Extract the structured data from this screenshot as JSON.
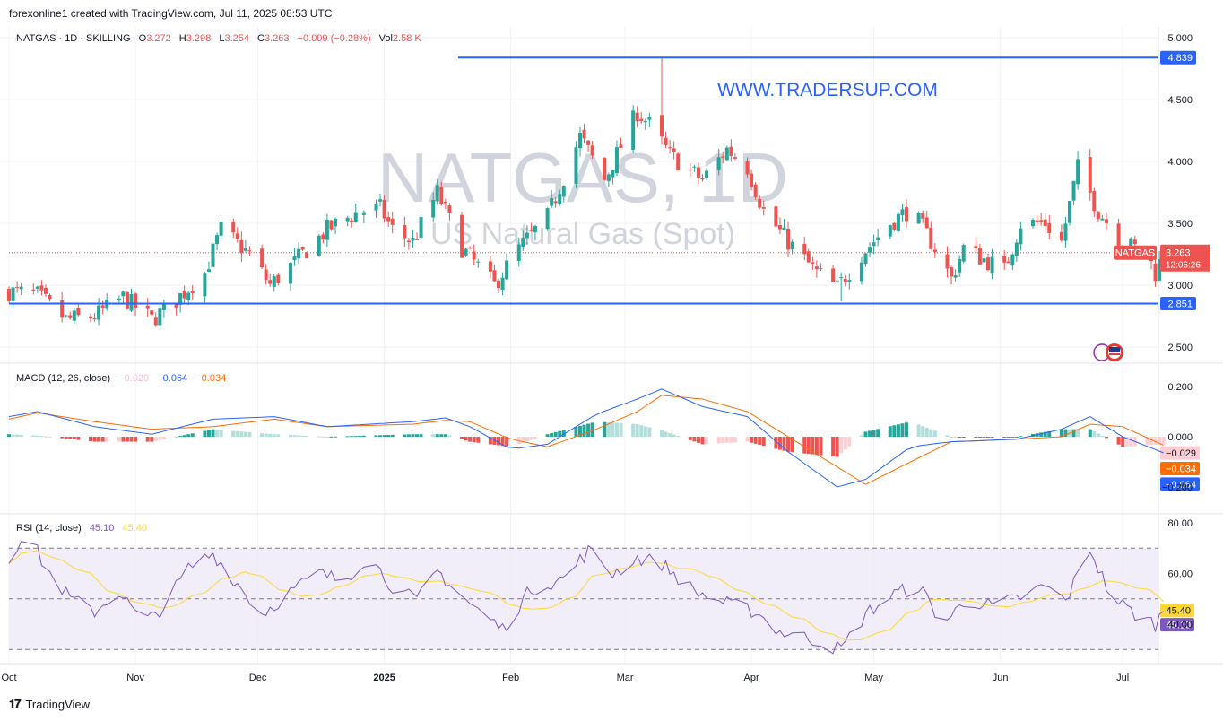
{
  "header": {
    "attribution": "forexonline1 created with TradingView.com, Jul 11, 2025 08:53 UTC"
  },
  "legend": {
    "symbol": "NATGAS · 1D · SKILLING",
    "o_label": "O",
    "o_value": "3.272",
    "h_label": "H",
    "h_value": "3.298",
    "l_label": "L",
    "l_value": "3.254",
    "c_label": "C",
    "c_value": "3.263",
    "change": "−0.009 (−0.28%)",
    "vol_label": "Vol",
    "vol_value": "2.58 K"
  },
  "watermark": {
    "title": "NATGAS, 1D",
    "subtitle": "US Natural Gas (Spot)"
  },
  "site_text": "WWW.TRADERSUP.COM",
  "price_axis": {
    "ticks": [
      "5.000",
      "4.500",
      "4.000",
      "3.500",
      "3.000",
      "2.500"
    ]
  },
  "levels": {
    "resistance": "4.839",
    "support": "2.851"
  },
  "last_price": {
    "symbol_tag": "NATGAS",
    "price": "3.263",
    "countdown": "12:06:26"
  },
  "macd": {
    "label": "MACD (12, 26, close)",
    "hist_value": "−0.029",
    "macd_value": "−0.064",
    "signal_value": "−0.034",
    "ticks": [
      "0.200",
      "0.000",
      "−0.200"
    ],
    "hist_tag": "−0.029",
    "signal_tag": "−0.034",
    "macd_tag": "−0.064"
  },
  "rsi": {
    "label": "RSI (14, close)",
    "rsi_value": "45.10",
    "ma_value": "45.40",
    "ticks": [
      "80.00",
      "60.00",
      "40.00"
    ],
    "ma_tag": "45.40",
    "rsi_tag": "45.10"
  },
  "time_axis": [
    "Oct",
    "Nov",
    "Dec",
    "2025",
    "Feb",
    "Mar",
    "Apr",
    "May",
    "Jun",
    "Jul"
  ],
  "footer": {
    "brand": "TradingView"
  },
  "colors": {
    "up": "#26a69a",
    "down": "#ef5350",
    "level_line": "#2962ff",
    "macd_line": "#2962ff",
    "signal_line": "#ff6d00",
    "rsi_line": "#7e57c2",
    "rsi_ma": "#fdd835"
  },
  "chart_data": {
    "type": "candlestick",
    "title": "NATGAS, 1D",
    "subtitle": "US Natural Gas (Spot)",
    "period": "2024-10-01 to 2025-07-11 (daily)",
    "price_range": [
      2.35,
      5.15
    ],
    "waypoints": [
      [
        "2024-10-01",
        2.95
      ],
      [
        "2024-10-08",
        2.92
      ],
      [
        "2024-10-15",
        2.72
      ],
      [
        "2024-10-22",
        2.75
      ],
      [
        "2024-10-29",
        2.9
      ],
      [
        "2024-11-05",
        2.72
      ],
      [
        "2024-11-10",
        2.85
      ],
      [
        "2024-11-18",
        3.1
      ],
      [
        "2024-11-22",
        3.45
      ],
      [
        "2024-11-29",
        3.25
      ],
      [
        "2024-12-04",
        3.0
      ],
      [
        "2024-12-12",
        3.25
      ],
      [
        "2024-12-18",
        3.45
      ],
      [
        "2024-12-26",
        3.6
      ],
      [
        "2024-12-31",
        3.62
      ],
      [
        "2025-01-03",
        3.45
      ],
      [
        "2025-01-08",
        3.35
      ],
      [
        "2025-01-14",
        3.75
      ],
      [
        "2025-01-20",
        3.3
      ],
      [
        "2025-01-28",
        3.0
      ],
      [
        "2025-02-03",
        3.3
      ],
      [
        "2025-02-10",
        3.55
      ],
      [
        "2025-02-18",
        4.2
      ],
      [
        "2025-02-24",
        3.85
      ],
      [
        "2025-03-04",
        4.4
      ],
      [
        "2025-03-07",
        4.3
      ],
      [
        "2025-03-12",
        4.05
      ],
      [
        "2025-03-20",
        3.85
      ],
      [
        "2025-03-26",
        4.1
      ],
      [
        "2025-03-31",
        3.95
      ],
      [
        "2025-04-04",
        3.6
      ],
      [
        "2025-04-10",
        3.35
      ],
      [
        "2025-04-17",
        3.1
      ],
      [
        "2025-04-22",
        2.98
      ],
      [
        "2025-04-28",
        3.25
      ],
      [
        "2025-05-05",
        3.5
      ],
      [
        "2025-05-10",
        3.62
      ],
      [
        "2025-05-16",
        3.3
      ],
      [
        "2025-05-20",
        3.05
      ],
      [
        "2025-05-23",
        3.3
      ],
      [
        "2025-06-02",
        3.12
      ],
      [
        "2025-06-06",
        3.5
      ],
      [
        "2025-06-12",
        3.5
      ],
      [
        "2025-06-16",
        3.35
      ],
      [
        "2025-06-20",
        3.95
      ],
      [
        "2025-06-25",
        3.6
      ],
      [
        "2025-07-01",
        3.35
      ],
      [
        "2025-07-07",
        3.25
      ],
      [
        "2025-07-09",
        3.1
      ],
      [
        "2025-07-11",
        3.263
      ]
    ],
    "horizontal_levels": [
      4.839,
      2.851
    ],
    "macd": {
      "ylim": [
        -0.28,
        0.28
      ],
      "waypoints": [
        [
          "2024-10-01",
          0.08,
          0.07
        ],
        [
          "2024-10-08",
          0.1,
          0.095
        ],
        [
          "2024-10-22",
          0.04,
          0.06
        ],
        [
          "2024-11-05",
          0.01,
          0.03
        ],
        [
          "2024-11-20",
          0.07,
          0.04
        ],
        [
          "2024-12-05",
          0.08,
          0.07
        ],
        [
          "2024-12-18",
          0.04,
          0.04
        ],
        [
          "2025-01-08",
          0.06,
          0.05
        ],
        [
          "2025-01-16",
          0.075,
          0.065
        ],
        [
          "2025-01-22",
          0.04,
          0.06
        ],
        [
          "2025-02-01",
          -0.05,
          -0.01
        ],
        [
          "2025-02-10",
          -0.03,
          -0.04
        ],
        [
          "2025-02-22",
          0.09,
          0.03
        ],
        [
          "2025-03-04",
          0.15,
          0.1
        ],
        [
          "2025-03-10",
          0.19,
          0.165
        ],
        [
          "2025-03-20",
          0.12,
          0.15
        ],
        [
          "2025-03-31",
          0.08,
          0.1
        ],
        [
          "2025-04-10",
          -0.06,
          0.0
        ],
        [
          "2025-04-22",
          -0.2,
          -0.12
        ],
        [
          "2025-04-29",
          -0.17,
          -0.19
        ],
        [
          "2025-05-10",
          -0.04,
          -0.1
        ],
        [
          "2025-05-20",
          -0.02,
          -0.02
        ],
        [
          "2025-06-05",
          -0.01,
          -0.01
        ],
        [
          "2025-06-16",
          0.03,
          0.0
        ],
        [
          "2025-06-23",
          0.08,
          0.05
        ],
        [
          "2025-07-01",
          0.0,
          0.04
        ],
        [
          "2025-07-11",
          -0.064,
          -0.034
        ]
      ]
    },
    "rsi": {
      "ylim": [
        25,
        85
      ],
      "levels": [
        70,
        50,
        30
      ],
      "waypoints": [
        [
          "2024-10-01",
          65
        ],
        [
          "2024-10-05",
          78
        ],
        [
          "2024-10-10",
          62
        ],
        [
          "2024-10-16",
          50
        ],
        [
          "2024-10-22",
          45
        ],
        [
          "2024-10-28",
          53
        ],
        [
          "2024-11-03",
          40
        ],
        [
          "2024-11-08",
          47
        ],
        [
          "2024-11-14",
          62
        ],
        [
          "2024-11-20",
          68
        ],
        [
          "2024-11-26",
          56
        ],
        [
          "2024-12-02",
          44
        ],
        [
          "2024-12-10",
          54
        ],
        [
          "2024-12-16",
          60
        ],
        [
          "2024-12-22",
          57
        ],
        [
          "2024-12-28",
          67
        ],
        [
          "2025-01-03",
          55
        ],
        [
          "2025-01-09",
          49
        ],
        [
          "2025-01-14",
          61
        ],
        [
          "2025-01-22",
          48
        ],
        [
          "2025-01-30",
          38
        ],
        [
          "2025-02-06",
          54
        ],
        [
          "2025-02-14",
          58
        ],
        [
          "2025-02-20",
          69
        ],
        [
          "2025-02-26",
          60
        ],
        [
          "2025-03-04",
          66
        ],
        [
          "2025-03-10",
          64
        ],
        [
          "2025-03-18",
          53
        ],
        [
          "2025-03-26",
          48
        ],
        [
          "2025-04-02",
          45
        ],
        [
          "2025-04-08",
          37
        ],
        [
          "2025-04-16",
          34
        ],
        [
          "2025-04-23",
          30
        ],
        [
          "2025-04-29",
          44
        ],
        [
          "2025-05-06",
          52
        ],
        [
          "2025-05-12",
          55
        ],
        [
          "2025-05-18",
          40
        ],
        [
          "2025-05-24",
          50
        ],
        [
          "2025-05-30",
          47
        ],
        [
          "2025-06-05",
          50
        ],
        [
          "2025-06-12",
          55
        ],
        [
          "2025-06-17",
          49
        ],
        [
          "2025-06-23",
          70
        ],
        [
          "2025-06-28",
          51
        ],
        [
          "2025-07-04",
          44
        ],
        [
          "2025-07-09",
          40
        ],
        [
          "2025-07-11",
          45.1
        ]
      ]
    }
  }
}
